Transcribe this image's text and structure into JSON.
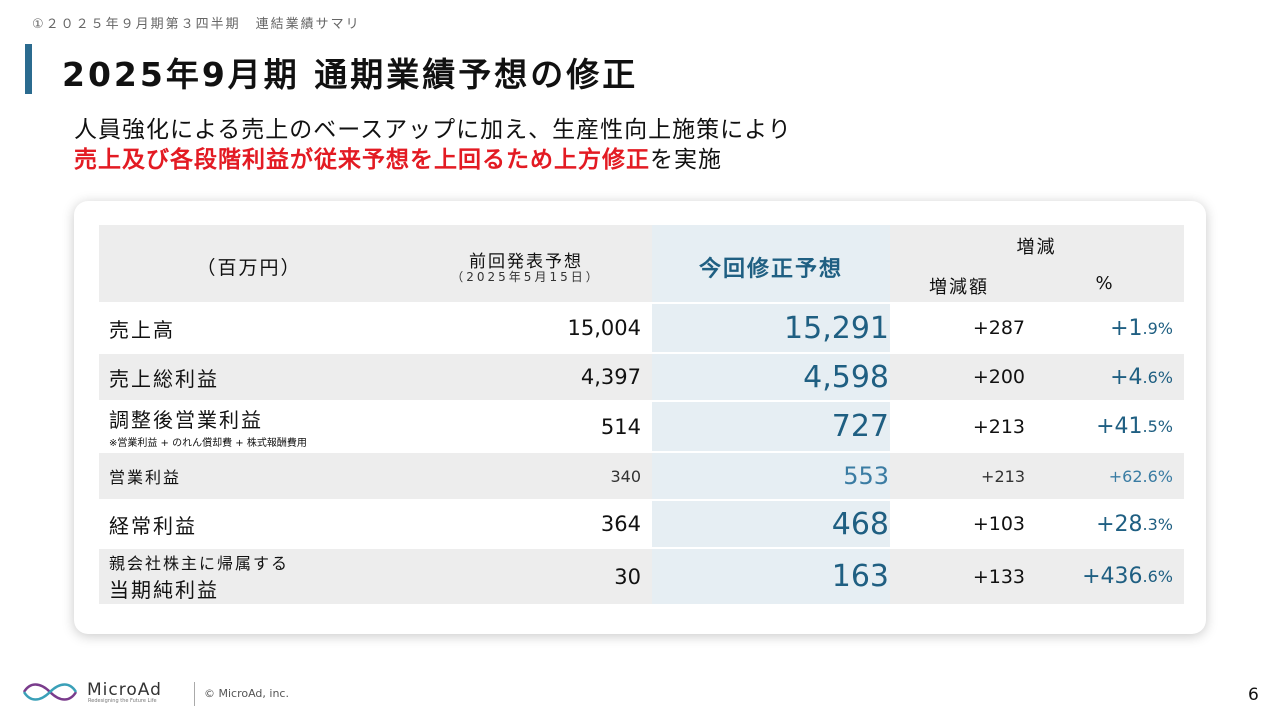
{
  "breadcrumb": "①２０２５年９月期第３四半期　連結業績サマリ",
  "title": "2025年9月期 通期業績予想の修正",
  "subtitle_line1": "人員強化による売上のベースアップに加え、生産性向上施策により",
  "subtitle_line2_red": "売上及び各段階利益が従来予想を上回るため上方修正",
  "subtitle_line2_rest": "を実施",
  "table": {
    "header": {
      "unit": "（百万円）",
      "prev": "前回発表予想",
      "prev_date": "（2025年5月15日）",
      "new": "今回修正予想",
      "diff": "増減",
      "diff_amount": "増減額",
      "diff_pct": "%"
    },
    "rows": [
      {
        "label": "売上高",
        "prev": "15,004",
        "new": "15,291",
        "diff": "+287",
        "pct_main": "+1",
        "pct_dec": ".9%"
      },
      {
        "label": "売上総利益",
        "prev": "4,397",
        "new": "4,598",
        "diff": "+200",
        "pct_main": "+4",
        "pct_dec": ".6%"
      },
      {
        "label": "調整後営業利益",
        "note": "※営業利益 + のれん償却費 + 株式報酬費用",
        "prev": "514",
        "new": "727",
        "diff": "+213",
        "pct_main": "+41",
        "pct_dec": ".5%"
      },
      {
        "label": "営業利益",
        "prev": "340",
        "new": "553",
        "diff": "+213",
        "pct": "+62.6%"
      },
      {
        "label": "経常利益",
        "prev": "364",
        "new": "468",
        "diff": "+103",
        "pct_main": "+28",
        "pct_dec": ".3%"
      },
      {
        "label_line1": "親会社株主に帰属する",
        "label_line2": "当期純利益",
        "prev": "30",
        "new": "163",
        "diff": "+133",
        "pct_main": "+436",
        "pct_dec": ".6%"
      }
    ]
  },
  "footer": {
    "brand": "MicroAd",
    "tagline": "Redesigning the Future Life",
    "copyright": "© MicroAd, inc.",
    "page": "6"
  },
  "colors": {
    "accent": "#2b6b8f",
    "highlight_red": "#e31b23",
    "value_blue": "#1f5f82"
  }
}
